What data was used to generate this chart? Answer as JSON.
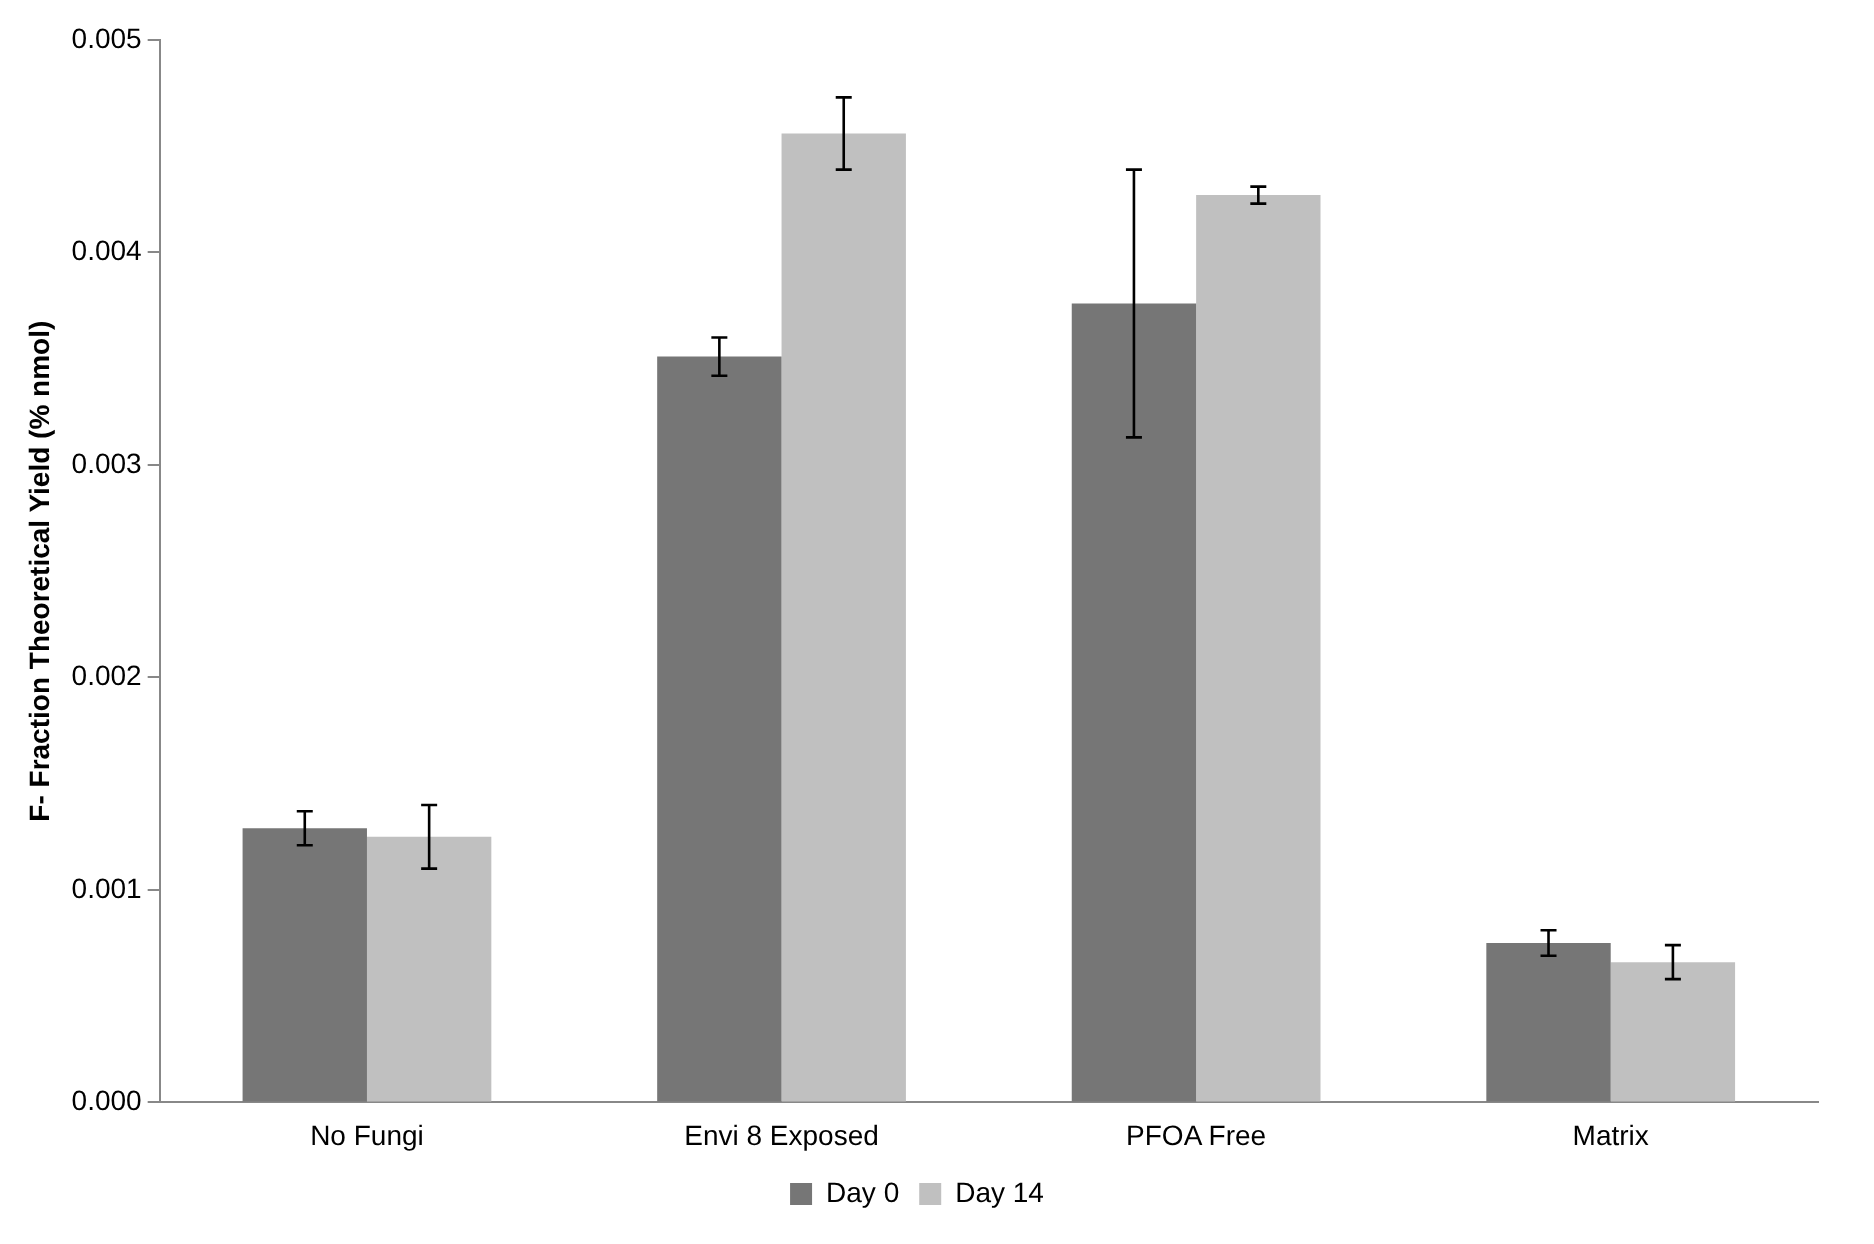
{
  "chart_data": {
    "type": "bar",
    "ylabel": "F- Fraction Theoretical Yield (% nmol)",
    "categories": [
      "No Fungi",
      "Envi 8 Exposed",
      "PFOA Free",
      "Matrix"
    ],
    "series": [
      {
        "name": "Day 0",
        "color": "#767676",
        "values": [
          0.00129,
          0.00351,
          0.00376,
          0.00075
        ],
        "errors": [
          8e-05,
          9e-05,
          0.00063,
          6e-05
        ]
      },
      {
        "name": "Day 14",
        "color": "#c0c0c0",
        "values": [
          0.00125,
          0.00456,
          0.00427,
          0.00066
        ],
        "errors": [
          0.00015,
          0.00017,
          4e-05,
          8e-05
        ]
      }
    ],
    "ylim": [
      0,
      0.005
    ],
    "yticks": [
      {
        "value": 0,
        "label": "0.000"
      },
      {
        "value": 0.001,
        "label": "0.001"
      },
      {
        "value": 0.002,
        "label": "0.002"
      },
      {
        "value": 0.003,
        "label": "0.003"
      },
      {
        "value": 0.004,
        "label": "0.004"
      },
      {
        "value": 0.005,
        "label": "0.005"
      }
    ],
    "grid": false,
    "legend": "bottom"
  }
}
